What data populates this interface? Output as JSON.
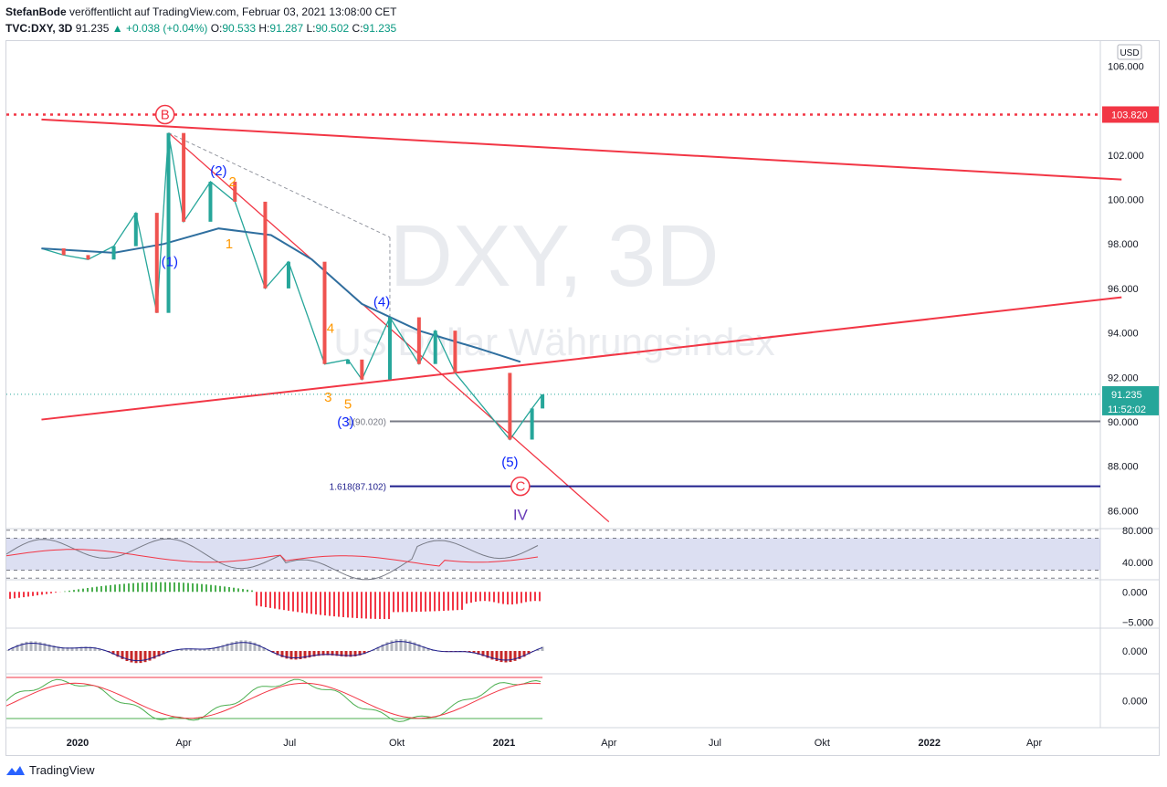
{
  "header": {
    "author": "StefanBode",
    "published": "veröffentlicht auf TradingView.com, Februar 03, 2021 13:08:00 CET",
    "symbol": "TVC:DXY, 3D",
    "last": "91.235",
    "change": "▲ +0.038 (+0.04%)",
    "o_label": "O:",
    "o_val": "90.533",
    "h_label": "H:",
    "h_val": "91.287",
    "l_label": "L:",
    "l_val": "90.502",
    "c_label": "C:",
    "c_val": "91.235"
  },
  "footer": {
    "brand": "TradingView"
  },
  "chart_data": [
    {
      "type": "line",
      "title": "",
      "watermark_symbol": "DXY, 3D",
      "watermark_name": "US Dollar Währungsindex",
      "currency": "USD",
      "x_tick_labels": [
        "2020",
        "Apr",
        "Jul",
        "Okt",
        "2021",
        "Apr",
        "Jul",
        "Okt",
        "2022",
        "Apr"
      ],
      "y_tick_labels": [
        "106.000",
        "102.000",
        "100.000",
        "98.000",
        "96.000",
        "94.000",
        "92.000",
        "90.000",
        "88.000",
        "86.000"
      ],
      "ylim": [
        85.0,
        106.5
      ],
      "price_path": [
        {
          "x": "2019-12-01",
          "y": 97.8
        },
        {
          "x": "2019-12-20",
          "y": 97.5
        },
        {
          "x": "2020-01-10",
          "y": 97.3
        },
        {
          "x": "2020-02-01",
          "y": 97.9
        },
        {
          "x": "2020-02-20",
          "y": 99.4
        },
        {
          "x": "2020-03-09",
          "y": 94.9
        },
        {
          "x": "2020-03-19",
          "y": 102.99
        },
        {
          "x": "2020-04-01",
          "y": 99.0
        },
        {
          "x": "2020-04-24",
          "y": 100.8
        },
        {
          "x": "2020-05-15",
          "y": 99.9
        },
        {
          "x": "2020-06-10",
          "y": 96.0
        },
        {
          "x": "2020-06-30",
          "y": 97.2
        },
        {
          "x": "2020-07-31",
          "y": 92.6
        },
        {
          "x": "2020-08-20",
          "y": 92.8
        },
        {
          "x": "2020-09-01",
          "y": 91.9
        },
        {
          "x": "2020-09-25",
          "y": 94.7
        },
        {
          "x": "2020-10-20",
          "y": 92.6
        },
        {
          "x": "2020-11-03",
          "y": 94.1
        },
        {
          "x": "2020-11-20",
          "y": 92.2
        },
        {
          "x": "2021-01-06",
          "y": 89.2
        },
        {
          "x": "2021-01-25",
          "y": 90.6
        },
        {
          "x": "2021-02-03",
          "y": 91.235
        }
      ],
      "moving_average": [
        {
          "x": "2019-12-01",
          "y": 97.8
        },
        {
          "x": "2020-02-01",
          "y": 97.6
        },
        {
          "x": "2020-03-15",
          "y": 98.0
        },
        {
          "x": "2020-05-01",
          "y": 98.7
        },
        {
          "x": "2020-06-15",
          "y": 98.4
        },
        {
          "x": "2020-07-20",
          "y": 97.3
        },
        {
          "x": "2020-09-01",
          "y": 95.3
        },
        {
          "x": "2020-10-20",
          "y": 94.1
        },
        {
          "x": "2020-12-10",
          "y": 93.3
        },
        {
          "x": "2021-01-15",
          "y": 92.7
        }
      ],
      "lines": [
        {
          "name": "upper-trendline",
          "from": {
            "x": "2019-12-01",
            "y": 103.6
          },
          "to": {
            "x": "2022-06-15",
            "y": 100.9
          },
          "color": "#f23645"
        },
        {
          "name": "lower-trendline",
          "from": {
            "x": "2019-12-01",
            "y": 90.1
          },
          "to": {
            "x": "2022-06-15",
            "y": 95.6
          },
          "color": "#f23645"
        },
        {
          "name": "falling-trendline",
          "from": {
            "x": "2020-03-19",
            "y": 103.0
          },
          "to": {
            "x": "2021-04-01",
            "y": 85.5
          },
          "color": "#f23645"
        },
        {
          "name": "projection-dashed",
          "from": {
            "x": "2020-03-19",
            "y": 103.0
          },
          "to": {
            "x": "2020-09-25",
            "y": 98.3
          },
          "color": "#9598a1"
        },
        {
          "name": "projection-drop",
          "from": {
            "x": "2020-09-25",
            "y": 98.3
          },
          "to": {
            "x": "2020-09-25",
            "y": 94.0
          },
          "color": "#9598a1"
        }
      ],
      "levels": [
        {
          "name": "wave-b-level",
          "price": 103.82,
          "label": "103.820",
          "color": "#f23645",
          "style": "dotted"
        },
        {
          "name": "fib-1-level",
          "price": 90.02,
          "label": "1(90.020)",
          "color": "#787b86",
          "from": "2020-09-25"
        },
        {
          "name": "fib-1618-level",
          "price": 87.102,
          "label": "1.618(87.102)",
          "color": "#1e1e8c",
          "from": "2020-09-25"
        },
        {
          "name": "last-price-level",
          "price": 91.235,
          "label": "91.235",
          "countdown": "11:52:02",
          "color": "#26a69a",
          "style": "dotted"
        }
      ],
      "wave_labels": [
        {
          "text": "B",
          "x": "2020-03-16",
          "y": 103.82,
          "color": "#f23645",
          "circled": true
        },
        {
          "text": "(1)",
          "x": "2020-03-20",
          "y": 97.2,
          "color": "#0b24fb"
        },
        {
          "text": "(2)",
          "x": "2020-05-01",
          "y": 101.3,
          "color": "#0b24fb"
        },
        {
          "text": "2",
          "x": "2020-05-13",
          "y": 100.8,
          "color": "#ff9800"
        },
        {
          "text": "1",
          "x": "2020-05-10",
          "y": 98.0,
          "color": "#ff9800"
        },
        {
          "text": "(4)",
          "x": "2020-09-18",
          "y": 95.4,
          "color": "#0b24fb"
        },
        {
          "text": "4",
          "x": "2020-08-05",
          "y": 94.2,
          "color": "#ff9800"
        },
        {
          "text": "3",
          "x": "2020-08-03",
          "y": 91.1,
          "color": "#ff9800"
        },
        {
          "text": "5",
          "x": "2020-08-20",
          "y": 90.8,
          "color": "#ff9800"
        },
        {
          "text": "(3)",
          "x": "2020-08-18",
          "y": 90.0,
          "color": "#0b24fb"
        },
        {
          "text": "(5)",
          "x": "2021-01-06",
          "y": 88.2,
          "color": "#0b24fb"
        },
        {
          "text": "C",
          "x": "2021-01-15",
          "y": 87.1,
          "color": "#f23645",
          "circled": true
        },
        {
          "text": "IV",
          "x": "2021-01-15",
          "y": 85.8,
          "color": "#673ab7"
        }
      ]
    },
    {
      "type": "line",
      "title": "",
      "name": "rsi-pane",
      "y_tick_labels": [
        "80.000",
        "40.000"
      ],
      "ylim": [
        18,
        82
      ],
      "series_colors": [
        "#787b86",
        "#f23645"
      ],
      "band_color": "#c5cae9"
    },
    {
      "type": "bar",
      "title": "",
      "name": "histogram-pane",
      "y_tick_labels": [
        "0.000",
        "−5.000"
      ],
      "ylim": [
        -6,
        2
      ],
      "positive_color": "#4caf50",
      "negative_color": "#f23645"
    },
    {
      "type": "bar",
      "title": "",
      "name": "macd-pane",
      "y_tick_labels": [
        "0.000"
      ],
      "ylim": [
        -3,
        3
      ],
      "line_color": "#1e1e8c"
    },
    {
      "type": "line",
      "title": "",
      "name": "stochastic-pane",
      "y_tick_labels": [
        "0.000"
      ],
      "ylim": [
        -1,
        1
      ],
      "series_colors": [
        "#4caf50",
        "#f23645"
      ]
    }
  ]
}
